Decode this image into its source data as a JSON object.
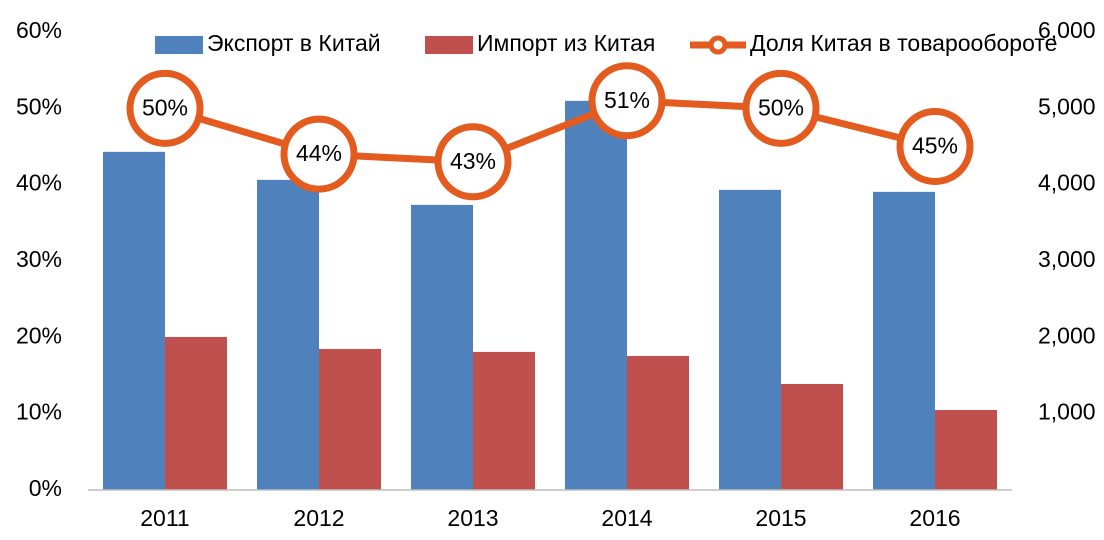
{
  "chart_data": {
    "type": "bar",
    "categories": [
      "2011",
      "2012",
      "2013",
      "2014",
      "2015",
      "2016"
    ],
    "series": [
      {
        "name": "Экспорт в Китай",
        "type": "bar",
        "color": "#4f81bd",
        "axis": "y2",
        "values": [
          4430,
          4063,
          3735,
          5098,
          3932,
          3906
        ]
      },
      {
        "name": "Импорт из Китая",
        "type": "bar",
        "color": "#c0504d",
        "axis": "y2",
        "values": [
          2005,
          1848,
          1809,
          1756,
          1389,
          1048
        ]
      },
      {
        "name": "Доля Китая в товарообороте",
        "type": "line",
        "color": "#e35b1e",
        "axis": "y",
        "values": [
          50,
          44,
          43,
          51,
          50,
          45
        ],
        "value_labels": [
          "50%",
          "44%",
          "43%",
          "51%",
          "50%",
          "45%"
        ]
      }
    ],
    "ylim": [
      0,
      60
    ],
    "yticks": [
      {
        "value": 0,
        "label": "0%"
      },
      {
        "value": 10,
        "label": "10%"
      },
      {
        "value": 20,
        "label": "20%"
      },
      {
        "value": 30,
        "label": "30%"
      },
      {
        "value": 40,
        "label": "40%"
      },
      {
        "value": 50,
        "label": "50%"
      },
      {
        "value": 60,
        "label": "60%"
      }
    ],
    "y2lim": [
      0,
      6000
    ],
    "y2ticks": [
      {
        "value": 1000,
        "label": "1,000"
      },
      {
        "value": 2000,
        "label": "2,000"
      },
      {
        "value": 3000,
        "label": "3,000"
      },
      {
        "value": 4000,
        "label": "4,000"
      },
      {
        "value": 5000,
        "label": "5,000"
      },
      {
        "value": 6000,
        "label": "6,000"
      }
    ],
    "legend": "top",
    "grid": false
  }
}
